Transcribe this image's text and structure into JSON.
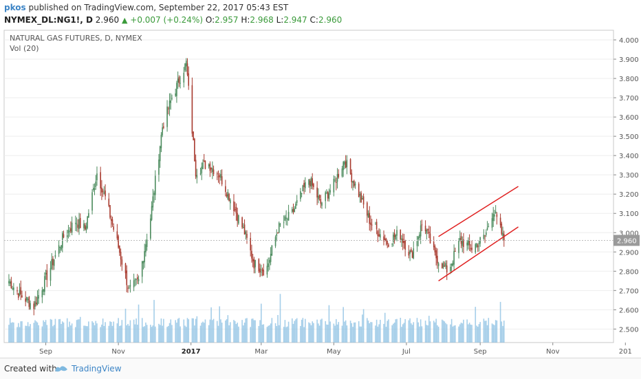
{
  "header": {
    "user": "pkos",
    "published_text": "published on TradingView.com, September 22, 2017 05:43 EST",
    "symbol": "NYMEX_DL:NG1!, D",
    "last": "2.960",
    "change": "+0.007 (+0.24%)",
    "o_label": "O:",
    "o": "2.957",
    "h_label": "H:",
    "h": "2.968",
    "l_label": "L:",
    "l": "2.947",
    "c_label": "C:",
    "c": "2.960"
  },
  "footer": {
    "created_with": "Created with",
    "brand": "TradingView"
  },
  "colors": {
    "up": "#4a8a5c",
    "down": "#a83a2e",
    "volume": "#7fb9e0",
    "channel": "#e02020",
    "price_label": "#9a9a9a"
  },
  "chart_data": {
    "type": "candlestick",
    "title": "NATURAL GAS FUTURES, D, NYMEX",
    "indicator": "Vol (20)",
    "y_ticks": [
      "2.500",
      "2.600",
      "2.700",
      "2.800",
      "2.900",
      "3.000",
      "3.100",
      "3.200",
      "3.300",
      "3.400",
      "3.500",
      "3.600",
      "3.700",
      "3.800",
      "3.900",
      "4.000"
    ],
    "ylim": [
      2.43,
      4.05
    ],
    "x_ticks": [
      "Sep",
      "Nov",
      "2017",
      "Mar",
      "May",
      "Jul",
      "Sep",
      "Nov",
      "201"
    ],
    "last_price_label": "2.960",
    "price_path": [
      [
        "2016-08-01",
        2.75
      ],
      [
        "2016-08-10",
        2.68
      ],
      [
        "2016-08-22",
        2.62
      ],
      [
        "2016-09-05",
        2.82
      ],
      [
        "2016-09-15",
        2.97
      ],
      [
        "2016-09-26",
        3.06
      ],
      [
        "2016-10-04",
        3.02
      ],
      [
        "2016-10-14",
        3.31
      ],
      [
        "2016-10-21",
        3.18
      ],
      [
        "2016-10-31",
        2.95
      ],
      [
        "2016-11-10",
        2.7
      ],
      [
        "2016-11-18",
        2.75
      ],
      [
        "2016-11-28",
        3.08
      ],
      [
        "2016-12-08",
        3.55
      ],
      [
        "2016-12-16",
        3.7
      ],
      [
        "2016-12-28",
        3.88
      ],
      [
        "2017-01-05",
        3.32
      ],
      [
        "2017-01-15",
        3.36
      ],
      [
        "2017-01-25",
        3.3
      ],
      [
        "2017-02-05",
        3.15
      ],
      [
        "2017-02-15",
        3.0
      ],
      [
        "2017-02-23",
        2.84
      ],
      [
        "2017-03-05",
        2.8
      ],
      [
        "2017-03-15",
        3.02
      ],
      [
        "2017-03-27",
        3.1
      ],
      [
        "2017-04-10",
        3.28
      ],
      [
        "2017-04-20",
        3.15
      ],
      [
        "2017-05-01",
        3.25
      ],
      [
        "2017-05-10",
        3.38
      ],
      [
        "2017-05-20",
        3.23
      ],
      [
        "2017-06-01",
        3.05
      ],
      [
        "2017-06-15",
        2.95
      ],
      [
        "2017-06-25",
        3.0
      ],
      [
        "2017-07-05",
        2.88
      ],
      [
        "2017-07-15",
        3.06
      ],
      [
        "2017-07-25",
        2.88
      ],
      [
        "2017-08-05",
        2.8
      ],
      [
        "2017-08-15",
        2.96
      ],
      [
        "2017-08-25",
        2.92
      ],
      [
        "2017-09-05",
        2.98
      ],
      [
        "2017-09-12",
        3.12
      ],
      [
        "2017-09-21",
        2.96
      ]
    ],
    "channel_lines": [
      [
        [
          "2017-07-28",
          2.75
        ],
        [
          "2017-10-03",
          3.03
        ]
      ],
      [
        [
          "2017-07-28",
          2.98
        ],
        [
          "2017-10-03",
          3.24
        ]
      ]
    ]
  }
}
